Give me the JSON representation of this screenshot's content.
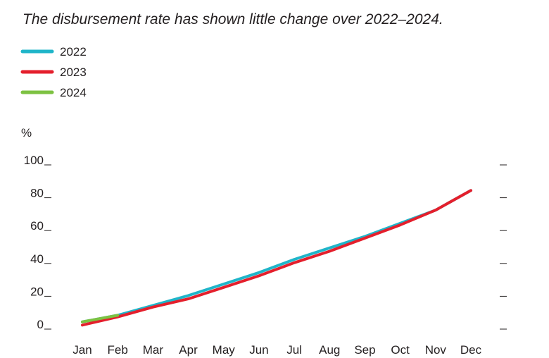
{
  "chart_data": {
    "type": "line",
    "title": "The disbursement rate has shown little change over 2022–2024.",
    "y_label": "%",
    "categories": [
      "Jan",
      "Feb",
      "Mar",
      "Apr",
      "May",
      "Jun",
      "Jul",
      "Aug",
      "Sep",
      "Oct",
      "Nov",
      "Dec"
    ],
    "series": [
      {
        "name": "2022",
        "color": "#1fb5c9",
        "values": [
          4,
          8,
          14,
          20,
          27,
          34,
          42,
          49,
          56,
          64,
          72,
          84
        ]
      },
      {
        "name": "2023",
        "color": "#e41f2c",
        "values": [
          2,
          7,
          13,
          18,
          25,
          32,
          40,
          47,
          55,
          63,
          72,
          84
        ]
      },
      {
        "name": "2024",
        "color": "#7dc242",
        "values": [
          4,
          8,
          null,
          null,
          null,
          null,
          null,
          null,
          null,
          null,
          null,
          null
        ]
      }
    ],
    "ylim": [
      0,
      100
    ],
    "yticks": [
      0,
      20,
      40,
      60,
      80,
      100
    ],
    "legend": "top-left",
    "grid": false
  }
}
